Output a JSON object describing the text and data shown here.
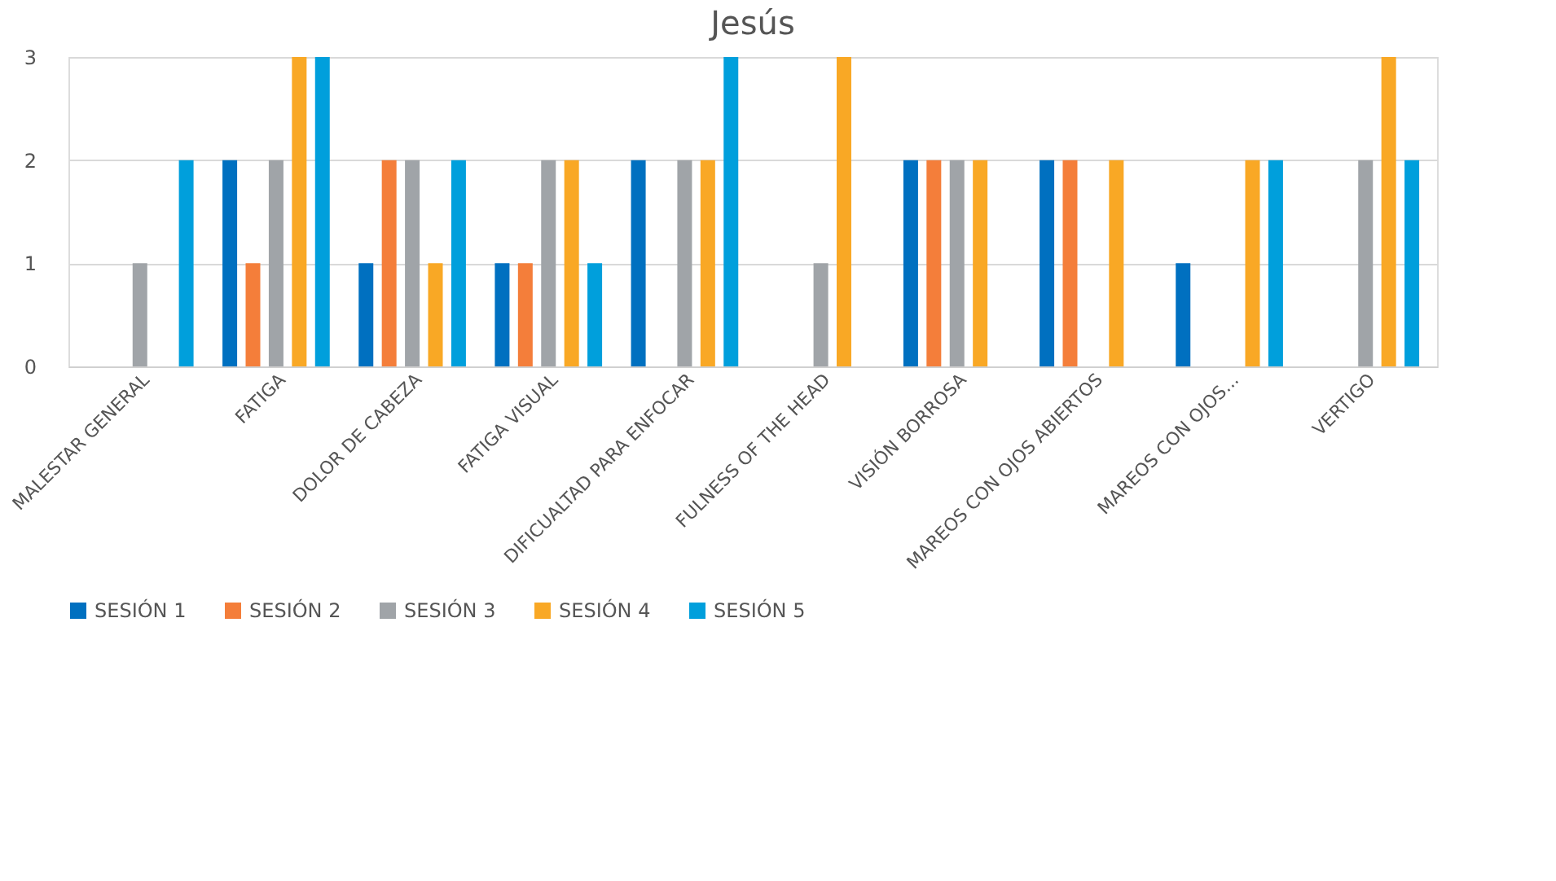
{
  "chart_data": {
    "type": "bar",
    "title": "Jesús",
    "categories": [
      "MALESTAR GENERAL",
      "FATIGA",
      "DOLOR DE CABEZA",
      "FATIGA VISUAL",
      "DIFICUALTAD PARA ENFOCAR",
      "FULNESS OF THE HEAD",
      "VISIÓN BORROSA",
      "MAREOS CON OJOS ABIERTOS",
      "MAREOS CON OJOS...",
      "VERTIGO"
    ],
    "series": [
      {
        "name": "SESIÓN 1",
        "color": "#0070c0",
        "values": [
          0,
          2,
          1,
          1,
          2,
          0,
          2,
          2,
          1,
          0
        ]
      },
      {
        "name": "SESIÓN 2",
        "color": "#f47e3a",
        "values": [
          0,
          1,
          2,
          1,
          0,
          0,
          2,
          2,
          0,
          0
        ]
      },
      {
        "name": "SESIÓN 3",
        "color": "#a0a4a8",
        "values": [
          1,
          2,
          2,
          2,
          2,
          1,
          2,
          0,
          0,
          2
        ]
      },
      {
        "name": "SESIÓN 4",
        "color": "#f9a825",
        "values": [
          0,
          3,
          1,
          2,
          2,
          3,
          2,
          2,
          2,
          3
        ]
      },
      {
        "name": "SESIÓN 5",
        "color": "#009fdc",
        "values": [
          2,
          3,
          2,
          1,
          3,
          0,
          0,
          0,
          2,
          2
        ]
      }
    ],
    "ylim": [
      0,
      3
    ],
    "yticks": [
      0,
      1,
      2,
      3
    ],
    "grid": "y",
    "legend": "bottom"
  }
}
